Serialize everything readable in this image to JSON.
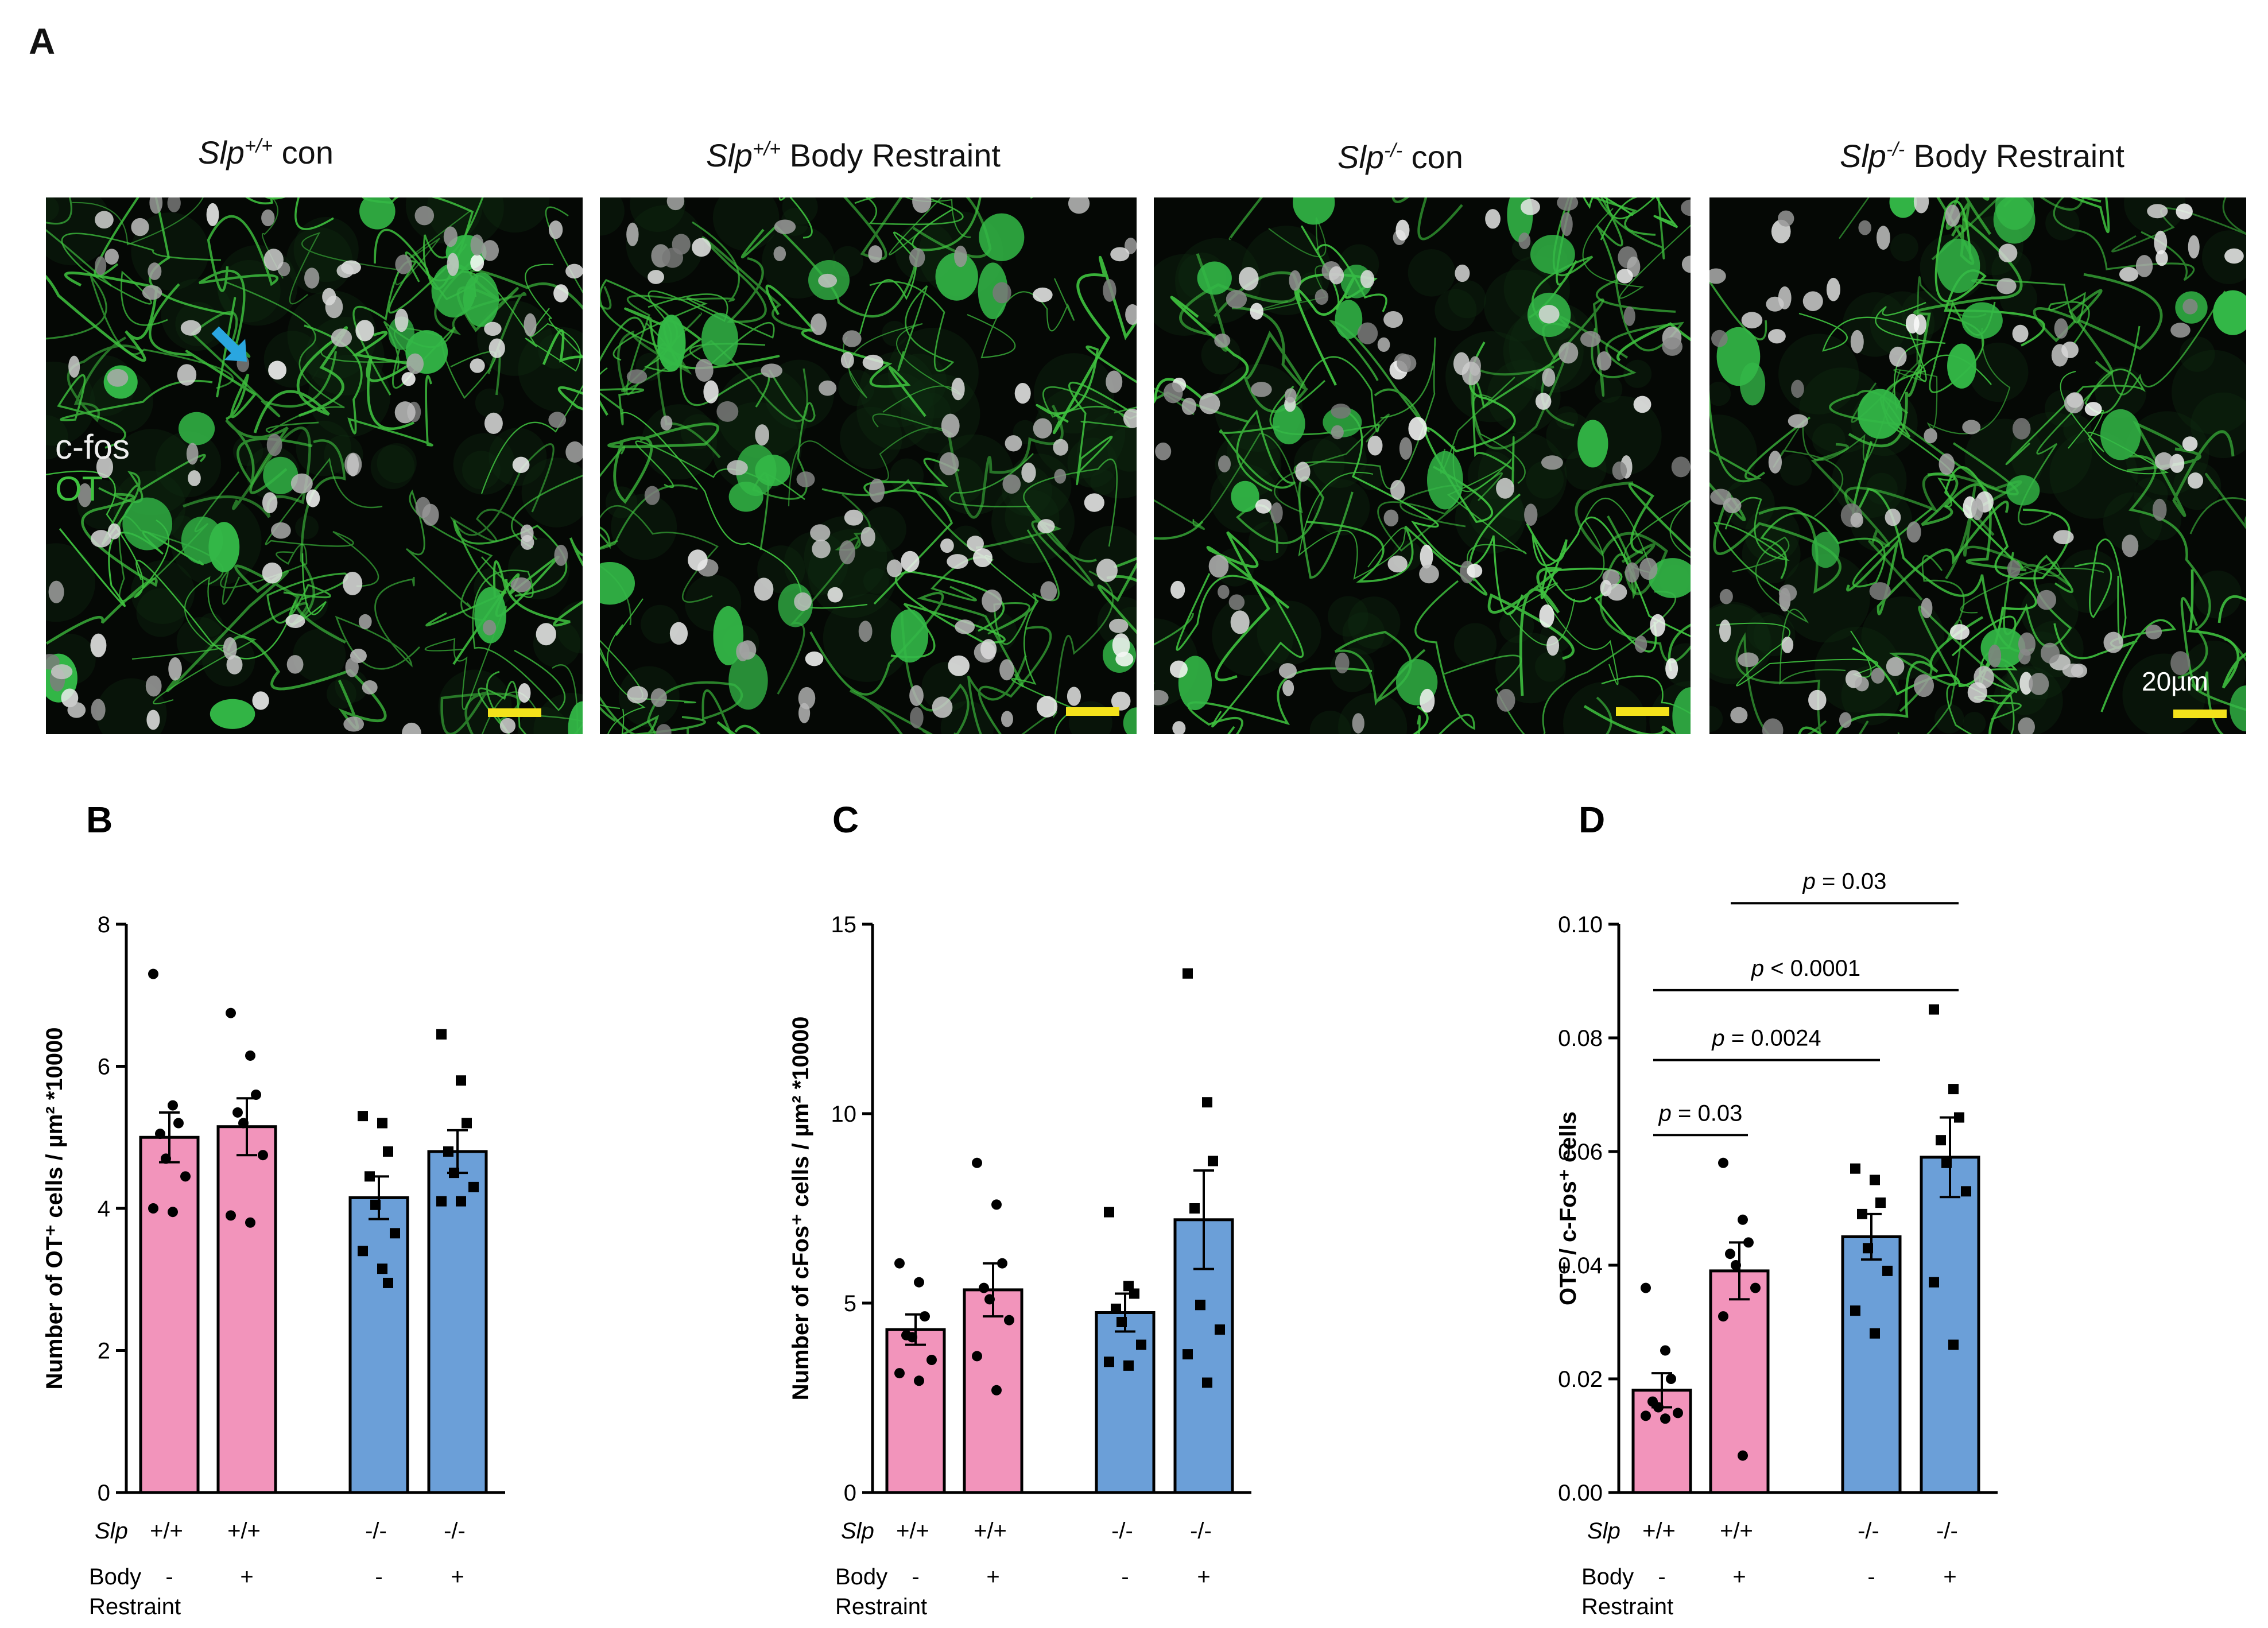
{
  "panel_a": {
    "letter": "A",
    "images": [
      {
        "title_gene": "Slp",
        "title_sup": "+/+",
        "title_rest": " con"
      },
      {
        "title_gene": "Slp",
        "title_sup": "+/+",
        "title_rest": " Body Restraint"
      },
      {
        "title_gene": "Slp",
        "title_sup": "-/-",
        "title_rest": " con"
      },
      {
        "title_gene": "Slp",
        "title_sup": "-/-",
        "title_rest": " Body Restraint"
      }
    ],
    "legend": {
      "cfos": "c-fos",
      "ot": "OT"
    },
    "scale_label": "20µm",
    "colors": {
      "cfos": "#e6e6e6",
      "ot": "#3fc23f",
      "arrow": "#2aa6e0",
      "scalebar": "#f3e21b"
    }
  },
  "chart_data": [
    {
      "type": "bar",
      "letter": "B",
      "ylabel": "Number of OT⁺ cells / µm² *10000",
      "ylim": [
        0,
        8
      ],
      "yticks": [
        "0",
        "2",
        "4",
        "6",
        "8"
      ],
      "row_labels": {
        "genotype": "Slp",
        "restraint_1": "Body",
        "restraint_2": "Restraint"
      },
      "categories": [
        {
          "genotype": "+/+",
          "restraint": "-",
          "mean": 5.0,
          "sem": 0.35,
          "color": "#f294bb",
          "marker": "circle",
          "points": [
            7.3,
            5.45,
            5.2,
            5.05,
            4.7,
            4.45,
            4.0,
            3.95
          ]
        },
        {
          "genotype": "+/+",
          "restraint": "+",
          "mean": 5.15,
          "sem": 0.4,
          "color": "#f294bb",
          "marker": "circle",
          "points": [
            6.75,
            6.15,
            5.6,
            5.35,
            5.2,
            4.75,
            3.9,
            3.8
          ]
        },
        {
          "genotype": "-/-",
          "restraint": "-",
          "mean": 4.15,
          "sem": 0.3,
          "color": "#6b9fd8",
          "marker": "square",
          "points": [
            5.3,
            5.2,
            4.8,
            4.45,
            4.05,
            3.65,
            3.4,
            3.15,
            2.95
          ]
        },
        {
          "genotype": "-/-",
          "restraint": "+",
          "mean": 4.8,
          "sem": 0.3,
          "color": "#6b9fd8",
          "marker": "square",
          "points": [
            6.45,
            5.8,
            5.2,
            4.8,
            4.5,
            4.3,
            4.1,
            4.1
          ]
        }
      ],
      "comparisons": []
    },
    {
      "type": "bar",
      "letter": "C",
      "ylabel": "Number of cFos⁺ cells / µm² *10000",
      "ylim": [
        0,
        15
      ],
      "yticks": [
        "0",
        "5",
        "10",
        "15"
      ],
      "row_labels": {
        "genotype": "Slp",
        "restraint_1": "Body",
        "restraint_2": "Restraint"
      },
      "categories": [
        {
          "genotype": "+/+",
          "restraint": "-",
          "mean": 4.3,
          "sem": 0.4,
          "color": "#f294bb",
          "marker": "circle",
          "points": [
            6.05,
            5.55,
            4.65,
            4.15,
            4.1,
            3.5,
            3.15,
            2.95
          ]
        },
        {
          "genotype": "+/+",
          "restraint": "+",
          "mean": 5.35,
          "sem": 0.7,
          "color": "#f294bb",
          "marker": "circle",
          "points": [
            8.7,
            7.6,
            6.05,
            5.4,
            5.1,
            4.55,
            3.6,
            2.7
          ]
        },
        {
          "genotype": "-/-",
          "restraint": "-",
          "mean": 4.75,
          "sem": 0.5,
          "color": "#6b9fd8",
          "marker": "square",
          "points": [
            7.4,
            5.45,
            5.25,
            4.85,
            4.5,
            3.9,
            3.45,
            3.35
          ]
        },
        {
          "genotype": "-/-",
          "restraint": "+",
          "mean": 7.2,
          "sem": 1.3,
          "color": "#6b9fd8",
          "marker": "square",
          "points": [
            13.7,
            10.3,
            8.75,
            7.5,
            4.95,
            4.3,
            3.65,
            2.9
          ]
        }
      ],
      "comparisons": []
    },
    {
      "type": "bar",
      "letter": "D",
      "ylabel": "OT⁺ / c-Fos⁺ cells",
      "ylim": [
        0,
        0.1
      ],
      "yticks": [
        "0.00",
        "0.02",
        "0.04",
        "0.06",
        "0.08",
        "0.10"
      ],
      "row_labels": {
        "genotype": "Slp",
        "restraint_1": "Body",
        "restraint_2": "Restraint"
      },
      "categories": [
        {
          "genotype": "+/+",
          "restraint": "-",
          "mean": 0.018,
          "sem": 0.003,
          "color": "#f294bb",
          "marker": "circle",
          "points": [
            0.036,
            0.025,
            0.02,
            0.016,
            0.015,
            0.014,
            0.0135,
            0.013
          ]
        },
        {
          "genotype": "+/+",
          "restraint": "+",
          "mean": 0.039,
          "sem": 0.005,
          "color": "#f294bb",
          "marker": "circle",
          "points": [
            0.058,
            0.048,
            0.044,
            0.042,
            0.04,
            0.036,
            0.031,
            0.0065
          ]
        },
        {
          "genotype": "-/-",
          "restraint": "-",
          "mean": 0.045,
          "sem": 0.004,
          "color": "#6b9fd8",
          "marker": "square",
          "points": [
            0.057,
            0.055,
            0.051,
            0.049,
            0.043,
            0.039,
            0.032,
            0.028
          ]
        },
        {
          "genotype": "-/-",
          "restraint": "+",
          "mean": 0.059,
          "sem": 0.007,
          "color": "#6b9fd8",
          "marker": "square",
          "points": [
            0.085,
            0.071,
            0.066,
            0.062,
            0.058,
            0.053,
            0.037,
            0.026
          ]
        }
      ],
      "comparisons": [
        {
          "from": 0,
          "to": 1,
          "label_p": "p",
          "label_rest": " = 0.03",
          "y": 0.0629
        },
        {
          "from": 0,
          "to": 2,
          "label_p": "p",
          "label_rest": " = 0.0024",
          "y": 0.0761
        },
        {
          "from": 0,
          "to": 3,
          "label_p": "p",
          "label_rest": " < 0.0001",
          "y": 0.0884
        },
        {
          "from": 1,
          "to": 3,
          "label_p": "p",
          "label_rest": " = 0.03",
          "y": 0.1037
        }
      ]
    }
  ]
}
